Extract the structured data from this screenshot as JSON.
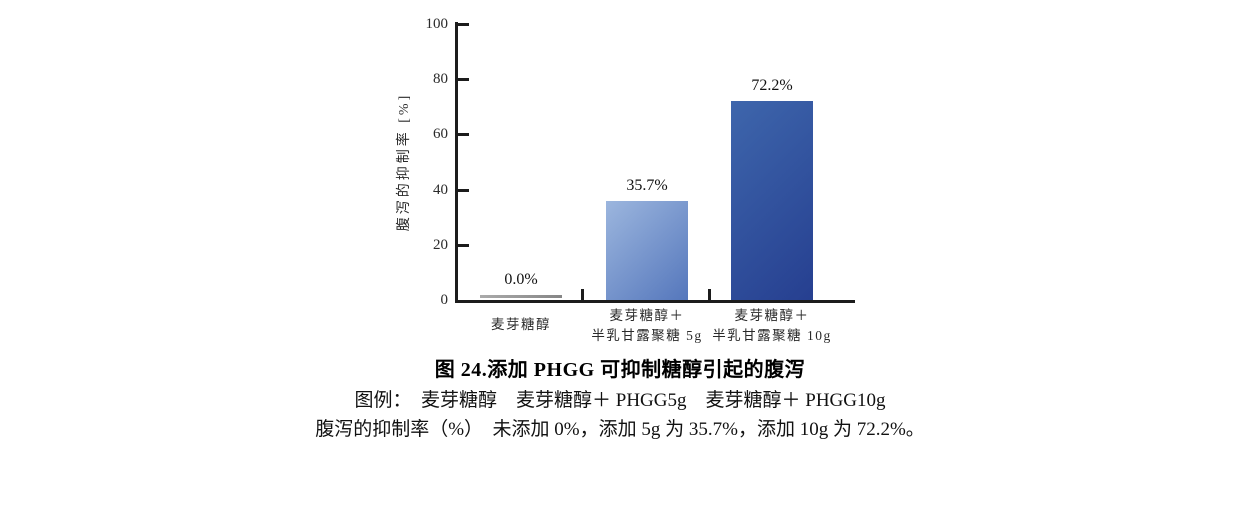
{
  "colors": {
    "background": "#ffffff",
    "axis": "#1c1c1c",
    "text": "#1a1a1a",
    "zero_bar_gray": "#8f8f8f"
  },
  "chart_data": {
    "type": "bar",
    "title": "图 24.添加 PHGG 可抑制糖醇引起的腹泻",
    "xlabel": "",
    "ylabel": "腹泻的抑制率 [%]",
    "ylim": [
      0,
      100
    ],
    "yticks": [
      0,
      20,
      40,
      60,
      80,
      100
    ],
    "grid": false,
    "legend_position": "none",
    "categories": [
      "麦芽糖醇",
      "麦芽糖醇＋半乳甘露聚糖 5g",
      "麦芽糖醇＋半乳甘露聚糖 10g"
    ],
    "category_lines": [
      [
        "麦芽糖醇"
      ],
      [
        "麦芽糖醇＋",
        "半乳甘露聚糖 5g"
      ],
      [
        "麦芽糖醇＋",
        "半乳甘露聚糖 10g"
      ]
    ],
    "values": [
      0.0,
      35.7,
      72.2
    ],
    "value_labels": [
      "0.0%",
      "35.7%",
      "72.2%"
    ],
    "bar_styles": [
      {
        "kind": "zero-line",
        "color_start": "#ababab",
        "color_end": "#858585"
      },
      {
        "kind": "gradient",
        "color_start": "#9cb6de",
        "color_end": "#5577bc"
      },
      {
        "kind": "gradient",
        "color_start": "#3e66ac",
        "color_end": "#263f90"
      }
    ]
  },
  "caption": {
    "title": "图 24.添加 PHGG 可抑制糖醇引起的腹泻",
    "legend_line": "图例：　麦芽糖醇　麦芽糖醇＋ PHGG5g　麦芽糖醇＋ PHGG10g",
    "summary_line": "腹泻的抑制率（%）　未添加 0%，添加 5g 为 35.7%，添加 10g 为 72.2%。"
  }
}
